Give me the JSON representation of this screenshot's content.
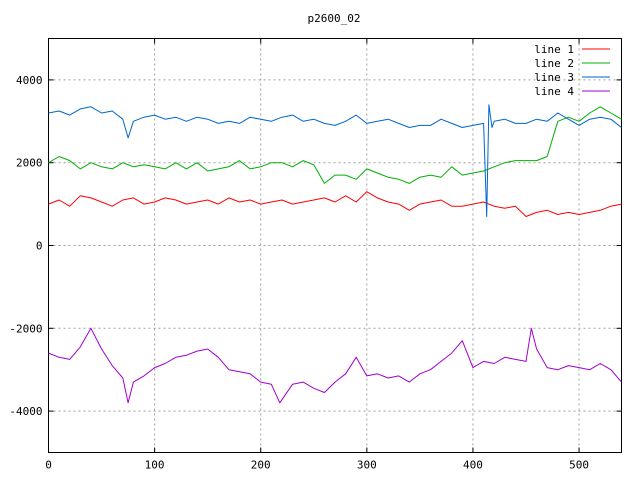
{
  "chart_data": {
    "type": "line",
    "title": "p2600_02",
    "xlabel": "",
    "ylabel": "",
    "xlim": [
      0,
      540
    ],
    "ylim": [
      -5000,
      5000
    ],
    "xticks": [
      0,
      100,
      200,
      300,
      400,
      500
    ],
    "yticks": [
      -4000,
      -2000,
      0,
      2000,
      4000
    ],
    "grid": true,
    "legend_position": "top-right",
    "series": [
      {
        "name": "line 1",
        "color": "#ff0000",
        "x": [
          0,
          10,
          20,
          30,
          40,
          50,
          60,
          70,
          80,
          90,
          100,
          110,
          120,
          130,
          140,
          150,
          160,
          170,
          180,
          190,
          200,
          210,
          220,
          230,
          240,
          250,
          260,
          270,
          280,
          290,
          300,
          310,
          320,
          330,
          340,
          350,
          360,
          370,
          380,
          390,
          400,
          410,
          420,
          430,
          440,
          450,
          460,
          470,
          480,
          490,
          500,
          510,
          520,
          530,
          540
        ],
        "values": [
          1000,
          1100,
          950,
          1200,
          1150,
          1050,
          950,
          1100,
          1150,
          1000,
          1050,
          1150,
          1100,
          1000,
          1050,
          1100,
          1000,
          1150,
          1050,
          1100,
          1000,
          1050,
          1100,
          1000,
          1050,
          1100,
          1150,
          1050,
          1200,
          1050,
          1300,
          1150,
          1050,
          1000,
          850,
          1000,
          1050,
          1100,
          950,
          950,
          1000,
          1050,
          950,
          900,
          950,
          700,
          800,
          850,
          750,
          800,
          750,
          800,
          850,
          950,
          1000
        ]
      },
      {
        "name": "line 2",
        "color": "#00b000",
        "x": [
          0,
          10,
          20,
          30,
          40,
          50,
          60,
          70,
          80,
          90,
          100,
          110,
          120,
          130,
          140,
          150,
          160,
          170,
          180,
          190,
          200,
          210,
          220,
          230,
          240,
          250,
          260,
          270,
          280,
          290,
          300,
          310,
          320,
          330,
          340,
          350,
          360,
          370,
          380,
          390,
          400,
          410,
          420,
          430,
          440,
          450,
          460,
          470,
          480,
          490,
          500,
          510,
          520,
          530,
          540
        ],
        "values": [
          2000,
          2150,
          2050,
          1850,
          2000,
          1900,
          1850,
          2000,
          1900,
          1950,
          1900,
          1850,
          2000,
          1850,
          2000,
          1800,
          1850,
          1900,
          2050,
          1850,
          1900,
          2000,
          2000,
          1900,
          2050,
          1950,
          1500,
          1700,
          1700,
          1600,
          1850,
          1750,
          1650,
          1600,
          1500,
          1650,
          1700,
          1650,
          1900,
          1700,
          1750,
          1800,
          1900,
          2000,
          2050,
          2050,
          2050,
          2150,
          3000,
          3100,
          3000,
          3200,
          3350,
          3200,
          3050
        ]
      },
      {
        "name": "line 3",
        "color": "#0066cc",
        "x": [
          0,
          10,
          20,
          30,
          40,
          50,
          60,
          70,
          75,
          80,
          90,
          100,
          110,
          120,
          130,
          140,
          150,
          160,
          170,
          180,
          190,
          200,
          210,
          220,
          230,
          240,
          250,
          260,
          270,
          280,
          290,
          300,
          310,
          320,
          330,
          340,
          350,
          360,
          370,
          380,
          390,
          400,
          410,
          413,
          415,
          418,
          420,
          430,
          440,
          450,
          460,
          470,
          480,
          490,
          500,
          510,
          520,
          530,
          540
        ],
        "values": [
          3200,
          3250,
          3150,
          3300,
          3350,
          3200,
          3250,
          3050,
          2600,
          3000,
          3100,
          3150,
          3050,
          3100,
          3000,
          3100,
          3050,
          2950,
          3000,
          2950,
          3100,
          3050,
          3000,
          3100,
          3150,
          3000,
          3050,
          2950,
          2900,
          3000,
          3150,
          2950,
          3000,
          3050,
          2950,
          2850,
          2900,
          2900,
          3050,
          2950,
          2850,
          2900,
          2950,
          700,
          3400,
          2850,
          3000,
          3050,
          2950,
          2950,
          3050,
          3000,
          3200,
          3050,
          2900,
          3050,
          3100,
          3050,
          2850
        ]
      },
      {
        "name": "line 4",
        "color": "#a000d0",
        "x": [
          0,
          10,
          20,
          30,
          40,
          50,
          60,
          70,
          75,
          80,
          90,
          100,
          110,
          120,
          130,
          140,
          150,
          160,
          170,
          180,
          190,
          200,
          210,
          218,
          230,
          240,
          250,
          260,
          270,
          280,
          290,
          300,
          310,
          320,
          330,
          340,
          350,
          360,
          370,
          380,
          390,
          400,
          410,
          420,
          430,
          440,
          450,
          455,
          460,
          470,
          480,
          490,
          500,
          510,
          520,
          530,
          540
        ],
        "values": [
          -2600,
          -2700,
          -2750,
          -2450,
          -2000,
          -2500,
          -2900,
          -3200,
          -3800,
          -3300,
          -3150,
          -2950,
          -2850,
          -2700,
          -2650,
          -2550,
          -2500,
          -2700,
          -3000,
          -3050,
          -3100,
          -3300,
          -3350,
          -3800,
          -3350,
          -3300,
          -3450,
          -3550,
          -3300,
          -3100,
          -2700,
          -3150,
          -3100,
          -3200,
          -3150,
          -3300,
          -3100,
          -3000,
          -2800,
          -2600,
          -2300,
          -2950,
          -2800,
          -2850,
          -2700,
          -2750,
          -2800,
          -2000,
          -2500,
          -2950,
          -3000,
          -2900,
          -2950,
          -3000,
          -2850,
          -3000,
          -3300
        ]
      }
    ]
  }
}
